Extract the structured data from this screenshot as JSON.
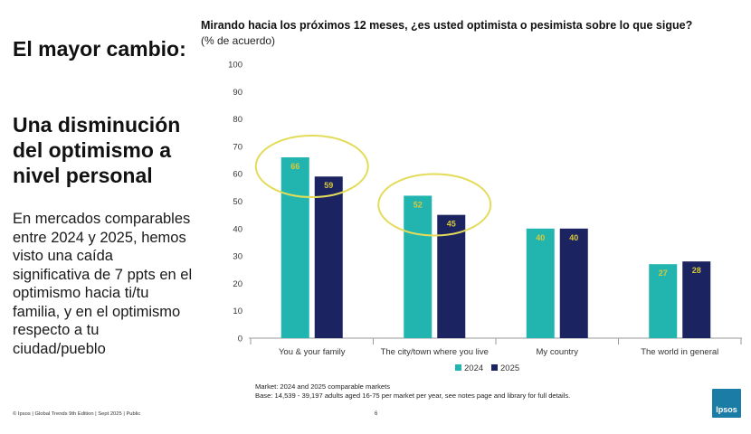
{
  "left_panel": {
    "heading1": "El mayor cambio:",
    "heading2": "Una disminución del optimismo a nivel personal",
    "body": "En mercados comparables entre 2024 y 2025, hemos visto una caída significativa de 7 ppts en el optimismo hacia ti/tu familia, y en el optimismo respecto a tu ciudad/pueblo"
  },
  "chart_data": {
    "type": "bar",
    "title": "Mirando hacia los próximos 12 meses, ¿es usted optimista o pesimista sobre lo que sigue?",
    "subtitle": "(% de acuerdo)",
    "categories": [
      "You & your family",
      "The city/town where you live",
      "My country",
      "The world in general"
    ],
    "series": [
      {
        "name": "2024",
        "color": "#22b5b0",
        "values": [
          66,
          52,
          40,
          27
        ]
      },
      {
        "name": "2025",
        "color": "#1c2361",
        "values": [
          59,
          45,
          40,
          28
        ]
      }
    ],
    "ylim": [
      0,
      100
    ],
    "yticks": [
      0,
      10,
      20,
      30,
      40,
      50,
      60,
      70,
      80,
      90,
      100
    ],
    "label_color": "#d6c93a",
    "highlight_color": "#e3dc5a",
    "highlight_categories": [
      0,
      1
    ],
    "legend_position": "bottom-center",
    "grid": false
  },
  "notes": {
    "line1": "Market: 2024 and 2025 comparable markets",
    "line2": "Base: 14,539 - 39,197 adults aged 16-75 per market per year, see notes page and library for full details."
  },
  "footer": {
    "text": "© Ipsos | Global Trends 9th Edition | Sept 2025 | Public",
    "page": "6"
  },
  "logo": {
    "text": "Ipsos",
    "color": "#1b7ca6"
  }
}
